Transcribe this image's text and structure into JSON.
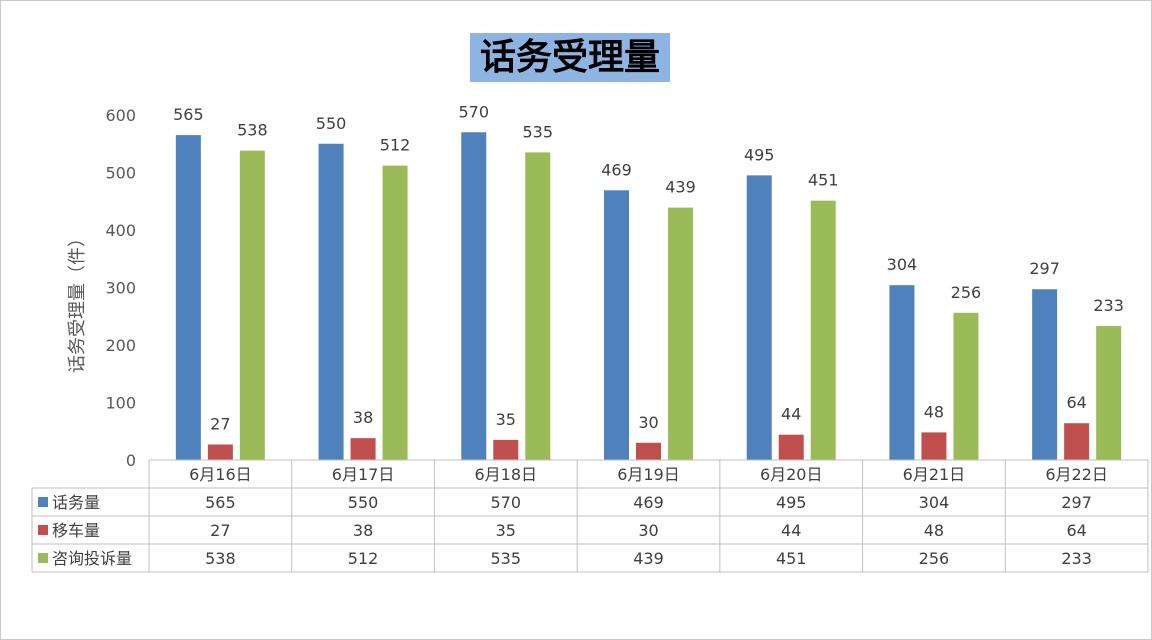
{
  "chart_data": {
    "type": "bar",
    "title": "话务受理量",
    "ylabel": "话务受理量（件）",
    "xlabel": "",
    "ylim": [
      0,
      600
    ],
    "yticks": [
      0,
      100,
      200,
      300,
      400,
      500,
      600
    ],
    "grid": false,
    "legend": "data-table",
    "categories": [
      "6月16日",
      "6月17日",
      "6月18日",
      "6月19日",
      "6月20日",
      "6月21日",
      "6月22日"
    ],
    "series": [
      {
        "name": "话务量",
        "color": "#4f81bd",
        "values": [
          565,
          550,
          570,
          469,
          495,
          304,
          297
        ]
      },
      {
        "name": "移车量",
        "color": "#c0504d",
        "values": [
          27,
          38,
          35,
          30,
          44,
          48,
          64
        ]
      },
      {
        "name": "咨询投诉量",
        "color": "#9bbb59",
        "values": [
          538,
          512,
          535,
          439,
          451,
          256,
          233
        ]
      }
    ]
  }
}
